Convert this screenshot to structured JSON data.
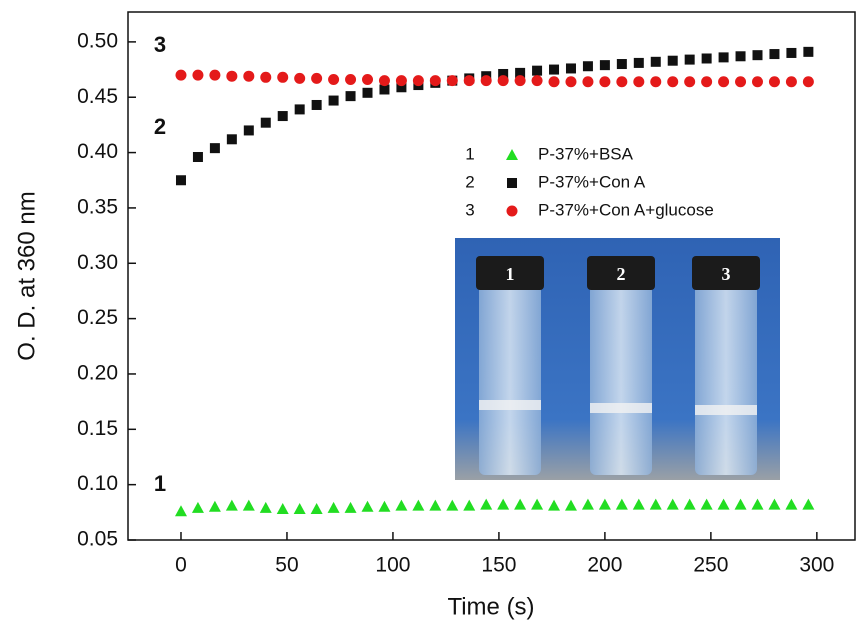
{
  "chart_data": {
    "type": "scatter",
    "x_label": "Time (s)",
    "y_label": "O. D. at 360 nm",
    "xlim": [
      -25,
      318
    ],
    "ylim": [
      0.05,
      0.527
    ],
    "xticks": [
      0,
      50,
      100,
      150,
      200,
      250,
      300
    ],
    "yticks": [
      0.05,
      {
        "value": 0.1,
        "label": "0.10"
      },
      0.15,
      {
        "value": 0.2,
        "label": "0.20"
      },
      0.25,
      {
        "value": 0.3,
        "label": "0.30"
      },
      0.35,
      {
        "value": 0.4,
        "label": "0.40"
      },
      0.45,
      {
        "value": 0.5,
        "label": "0.50"
      }
    ],
    "x": [
      0,
      8,
      16,
      24,
      32,
      40,
      48,
      56,
      64,
      72,
      80,
      88,
      96,
      104,
      112,
      120,
      128,
      136,
      144,
      152,
      160,
      168,
      176,
      184,
      192,
      200,
      208,
      216,
      224,
      232,
      240,
      248,
      256,
      264,
      272,
      280,
      288,
      296
    ],
    "series": [
      {
        "number": "1",
        "name": "P-37%+BSA",
        "color": "#22dd22",
        "marker": "triangle",
        "values": [
          0.076,
          0.079,
          0.08,
          0.081,
          0.081,
          0.079,
          0.078,
          0.078,
          0.078,
          0.079,
          0.079,
          0.08,
          0.08,
          0.081,
          0.081,
          0.081,
          0.081,
          0.081,
          0.082,
          0.082,
          0.082,
          0.082,
          0.081,
          0.081,
          0.082,
          0.082,
          0.082,
          0.082,
          0.082,
          0.082,
          0.082,
          0.082,
          0.082,
          0.082,
          0.082,
          0.082,
          0.082,
          0.082
        ]
      },
      {
        "number": "2",
        "name": "P-37%+Con A",
        "color": "#111111",
        "marker": "square",
        "values": [
          0.375,
          0.396,
          0.404,
          0.412,
          0.42,
          0.427,
          0.433,
          0.439,
          0.443,
          0.447,
          0.451,
          0.454,
          0.457,
          0.459,
          0.461,
          0.463,
          0.465,
          0.467,
          0.469,
          0.471,
          0.472,
          0.474,
          0.475,
          0.476,
          0.478,
          0.479,
          0.48,
          0.481,
          0.482,
          0.483,
          0.484,
          0.485,
          0.486,
          0.487,
          0.488,
          0.489,
          0.49,
          0.491
        ]
      },
      {
        "number": "3",
        "name": "P-37%+Con A+glucose",
        "color": "#e41a1a",
        "marker": "circle",
        "values": [
          0.47,
          0.47,
          0.47,
          0.469,
          0.469,
          0.468,
          0.468,
          0.467,
          0.467,
          0.466,
          0.466,
          0.466,
          0.465,
          0.465,
          0.465,
          0.465,
          0.465,
          0.465,
          0.465,
          0.465,
          0.465,
          0.465,
          0.464,
          0.464,
          0.464,
          0.464,
          0.464,
          0.464,
          0.464,
          0.464,
          0.464,
          0.464,
          0.464,
          0.464,
          0.464,
          0.464,
          0.464,
          0.464
        ]
      }
    ],
    "annotations": [
      "3",
      "2",
      "1"
    ],
    "inset_labels": [
      "1",
      "2",
      "3"
    ]
  }
}
